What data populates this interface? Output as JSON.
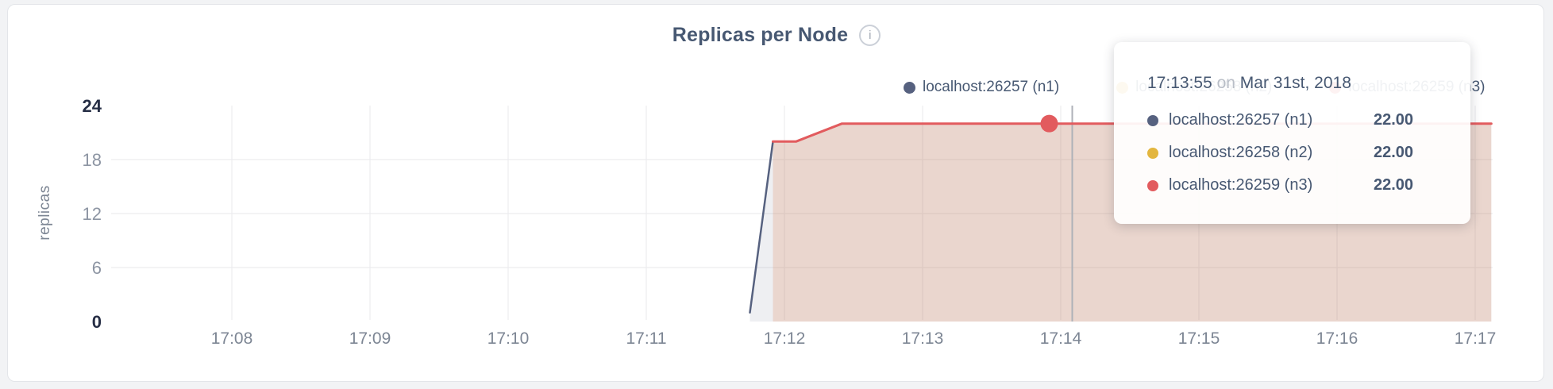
{
  "header": {
    "info_icon_glyph": "i"
  },
  "chart_data": {
    "type": "area",
    "title": "Replicas per Node",
    "xlabel": "",
    "ylabel": "replicas",
    "ylim": [
      0,
      24
    ],
    "y_ticks": [
      0,
      6,
      12,
      18,
      24
    ],
    "y_gridline_ticks": [
      6,
      12,
      18
    ],
    "x_ticks": [
      "17:08",
      "17:09",
      "17:10",
      "17:11",
      "17:12",
      "17:13",
      "17:14",
      "17:15",
      "17:16",
      "17:17"
    ],
    "grid": "on",
    "legend_position": "top-right",
    "series": [
      {
        "name": "localhost:26257 (n1)",
        "color": "#56617f",
        "fill": "rgba(86,97,128,0.10)",
        "line_width": 2.5,
        "points": [
          [
            "17:11:45",
            1
          ],
          [
            "17:11:55",
            20
          ],
          [
            "17:12:05",
            20
          ],
          [
            "17:12:25",
            22
          ],
          [
            "17:13:55",
            22
          ],
          [
            "17:17:07",
            22
          ]
        ]
      },
      {
        "name": "localhost:26258 (n2)",
        "color": "#e3b63e",
        "fill": "rgba(226,181,62,0.10)",
        "line_width": 2.5,
        "points": [
          [
            "17:11:55",
            20
          ],
          [
            "17:12:05",
            20
          ],
          [
            "17:12:25",
            22
          ],
          [
            "17:13:55",
            22
          ],
          [
            "17:17:07",
            22
          ]
        ]
      },
      {
        "name": "localhost:26259 (n3)",
        "color": "#e25b5e",
        "fill": "rgba(226,91,92,0.12)",
        "line_width": 3,
        "points": [
          [
            "17:11:55",
            20
          ],
          [
            "17:12:05",
            20
          ],
          [
            "17:12:25",
            22
          ],
          [
            "17:13:55",
            22
          ],
          [
            "17:17:07",
            22
          ]
        ]
      }
    ],
    "hover": {
      "time": "17:13:55",
      "value": 22,
      "dot_color": "#e25b5e",
      "crosshair_time": "17:14:05"
    }
  },
  "legend": {
    "items": [
      {
        "label": "localhost:26257 (n1)",
        "color": "#56617f"
      },
      {
        "label": "localhost:26258 (n2)",
        "color": "#e3b63e"
      },
      {
        "label": "localhost:26259 (n3)",
        "color": "#e25b5e"
      }
    ]
  },
  "tooltip": {
    "time": "17:13:55",
    "conjunction": "on",
    "date": "Mar 31st, 2018",
    "rows": [
      {
        "name": "localhost:26257 (n1)",
        "value": "22.00",
        "color": "#56617f"
      },
      {
        "name": "localhost:26258 (n2)",
        "value": "22.00",
        "color": "#e3b63e"
      },
      {
        "name": "localhost:26259 (n3)",
        "value": "22.00",
        "color": "#e25b5e"
      }
    ]
  },
  "colors": {
    "title_text": "#475872",
    "axis_minor_tick": "#8d95a3",
    "axis_extreme_tick": "#262e45",
    "x_tick_label": "#7d8694",
    "gridline": "#ececee",
    "crosshair": "#aeb1b8",
    "card_background": "#ffffff",
    "page_background": "#f2f3f5"
  }
}
